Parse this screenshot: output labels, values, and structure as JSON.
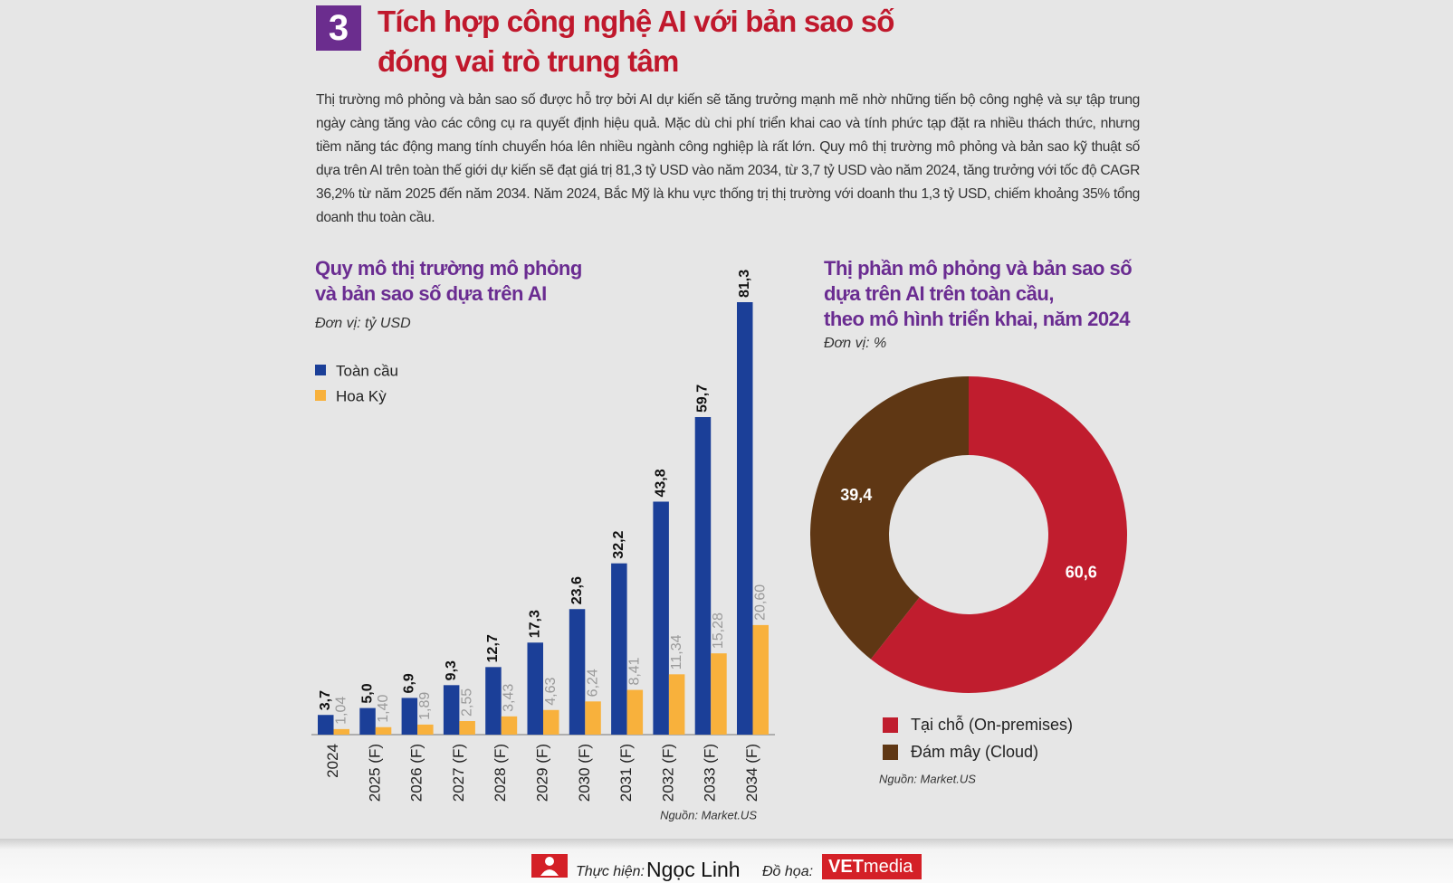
{
  "header": {
    "number": "3",
    "title": [
      "Tích hợp công nghệ AI với bản sao số",
      "đóng vai trò trung tâm"
    ],
    "paragraph": "Thị trường mô phỏng và bản sao số được hỗ trợ bởi AI dự kiến sẽ tăng trưởng mạnh mẽ nhờ những tiến bộ công nghệ và sự tập trung ngày càng tăng vào các công cụ ra quyết định hiệu quả. Mặc dù chi phí triển khai cao và tính phức tạp đặt ra nhiều thách thức, nhưng tiềm năng tác động mang tính chuyển hóa lên nhiều ngành công nghiệp là rất lớn. Quy mô thị trường mô phỏng và bản sao kỹ thuật số dựa trên AI trên toàn thế giới dự kiến sẽ đạt giá trị 81,3 tỷ USD vào năm 2034, từ 3,7 tỷ USD vào năm 2024, tăng trưởng với tốc độ CAGR 36,2% từ năm 2025 đến năm 2034. Năm 2024, Bắc Mỹ là khu vực thống trị thị trường với doanh thu 1,3 tỷ USD, chiếm khoảng 35% tổng doanh thu toàn cầu."
  },
  "chart_data": [
    {
      "type": "bar",
      "title": [
        "Quy mô thị trường mô phỏng",
        "và bản sao số dựa trên AI"
      ],
      "subtitle": "Đơn vị: tỷ USD",
      "categories": [
        "2024",
        "2025 (F)",
        "2026 (F)",
        "2027 (F)",
        "2028 (F)",
        "2029 (F)",
        "2030 (F)",
        "2031 (F)",
        "2032 (F)",
        "2033 (F)",
        "2034 (F)"
      ],
      "series": [
        {
          "name": "Toàn cầu",
          "color": "#1b3f98",
          "values": [
            3.7,
            5.0,
            6.9,
            9.3,
            12.7,
            17.3,
            23.6,
            32.2,
            43.8,
            59.7,
            81.3
          ],
          "value_labels": [
            "3,7",
            "5,0",
            "6,9",
            "9,3",
            "12,7",
            "17,3",
            "23,6",
            "32,2",
            "43,8",
            "59,7",
            "81,3"
          ]
        },
        {
          "name": "Hoa Kỳ",
          "color": "#f8b13c",
          "values": [
            1.04,
            1.4,
            1.89,
            2.55,
            3.43,
            4.63,
            6.24,
            8.41,
            11.34,
            15.28,
            20.6
          ],
          "value_labels": [
            "1,04",
            "1,40",
            "1,89",
            "2,55",
            "3,43",
            "4,63",
            "6,24",
            "8,41",
            "11,34",
            "15,28",
            "20,60"
          ]
        }
      ],
      "source": "Nguồn: Market.US"
    },
    {
      "type": "pie",
      "donut": true,
      "title": [
        "Thị phần mô phỏng và bản sao số",
        "dựa trên AI trên toàn cầu,",
        "theo mô hình triển khai, năm 2024"
      ],
      "subtitle": "Đơn vị: %",
      "categories": [
        "Tại chỗ (On-premises)",
        "Đám mây (Cloud)"
      ],
      "values": [
        60.6,
        39.4
      ],
      "value_labels": [
        "60,6",
        "39,4"
      ],
      "colors": [
        "#c01d2e",
        "#5f3714"
      ],
      "source": "Nguồn: Market.US"
    }
  ],
  "footer": {
    "by_label": "Thực hiện:",
    "by": "Ngọc Linh",
    "graphics_label": "Đồ họa:",
    "logo": [
      "VET",
      "media"
    ]
  }
}
